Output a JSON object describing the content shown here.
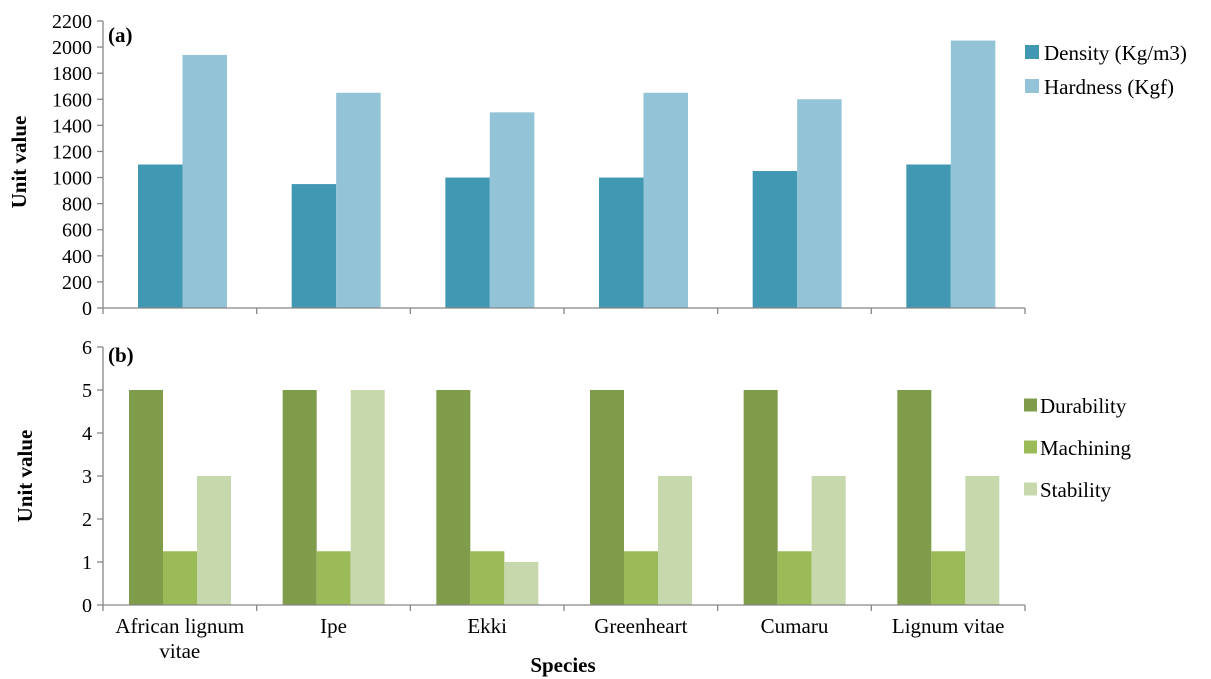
{
  "colors": {
    "density": "#4198b2",
    "hardness": "#93c3d6",
    "durability": "#7f9c4a",
    "machining": "#9bbb59",
    "stability": "#c8d8ad",
    "axis": "#868686"
  },
  "shared": {
    "categories": [
      [
        "African lignum",
        "vitae"
      ],
      [
        "Ipe"
      ],
      [
        "Ekki"
      ],
      [
        "Greenheart"
      ],
      [
        "Cumaru"
      ],
      [
        "Lignum vitae"
      ]
    ],
    "xlabel": "Species"
  },
  "chart_data": [
    {
      "type": "bar",
      "panel_label": "(a)",
      "ylabel": "Unit value",
      "ylim": [
        0,
        2200
      ],
      "yticks": [
        0,
        200,
        400,
        600,
        800,
        1000,
        1200,
        1400,
        1600,
        1800,
        2000,
        2200
      ],
      "categories": [
        "African lignum vitae",
        "Ipe",
        "Ekki",
        "Greenheart",
        "Cumaru",
        "Lignum vitae"
      ],
      "series": [
        {
          "name": "Density (Kg/m3)",
          "color_key": "density",
          "values": [
            1100,
            950,
            1000,
            1000,
            1050,
            1100
          ]
        },
        {
          "name": "Hardness (Kgf)",
          "color_key": "hardness",
          "values": [
            1940,
            1650,
            1500,
            1650,
            1600,
            2050
          ]
        }
      ],
      "legend_position": "right",
      "grid": false
    },
    {
      "type": "bar",
      "panel_label": "(b)",
      "ylabel": "Unit value",
      "ylim": [
        0,
        6
      ],
      "yticks": [
        0,
        1,
        2,
        3,
        4,
        5,
        6
      ],
      "categories": [
        "African lignum vitae",
        "Ipe",
        "Ekki",
        "Greenheart",
        "Cumaru",
        "Lignum vitae"
      ],
      "xlabel": "Species",
      "series": [
        {
          "name": "Durability",
          "color_key": "durability",
          "values": [
            5,
            5,
            5,
            5,
            5,
            5
          ]
        },
        {
          "name": "Machining",
          "color_key": "machining",
          "values": [
            1.25,
            1.25,
            1.25,
            1.25,
            1.25,
            1.25
          ]
        },
        {
          "name": "Stability",
          "color_key": "stability",
          "values": [
            3,
            5,
            1,
            3,
            3,
            3
          ]
        }
      ],
      "legend_position": "right",
      "grid": false
    }
  ]
}
